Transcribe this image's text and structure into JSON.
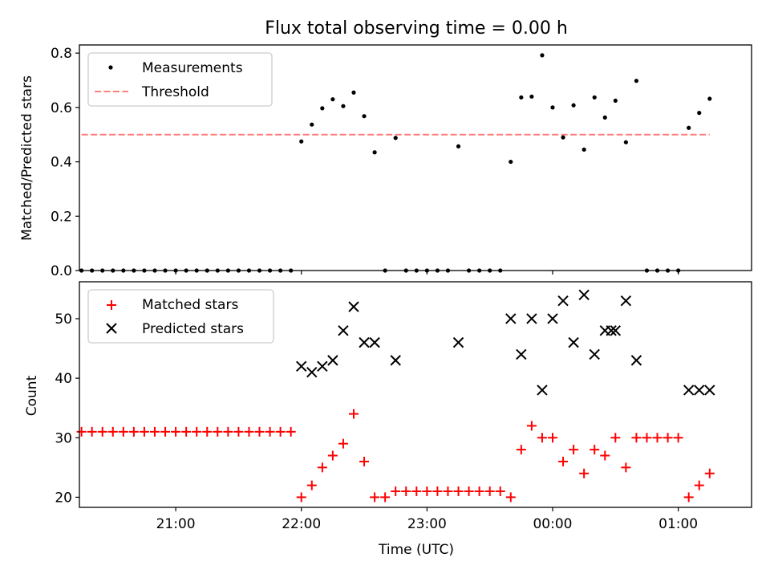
{
  "chart_data": [
    {
      "type": "scatter",
      "title": "Flux total observing time = 0.00 h",
      "ylabel": "Matched/Predicted stars",
      "xlabel": "",
      "xlim": [
        "20:14",
        "01:35"
      ],
      "ylim": [
        0,
        0.83
      ],
      "yticks": [
        "0.0",
        "0.2",
        "0.4",
        "0.6",
        "0.8"
      ],
      "legend": {
        "placement": "top-left",
        "entries": [
          "Measurements",
          "Threshold"
        ]
      },
      "threshold": {
        "name": "Threshold",
        "y": 0.5,
        "x": [
          "20:15",
          "01:15"
        ],
        "color": "#ff7f7f",
        "style": "dashed"
      },
      "series": [
        {
          "name": "Measurements",
          "color": "#000000",
          "points": [
            [
              "20:15",
              0
            ],
            [
              "20:20",
              0
            ],
            [
              "20:25",
              0
            ],
            [
              "20:30",
              0
            ],
            [
              "20:35",
              0
            ],
            [
              "20:40",
              0
            ],
            [
              "20:45",
              0
            ],
            [
              "20:50",
              0
            ],
            [
              "20:55",
              0
            ],
            [
              "21:00",
              0
            ],
            [
              "21:05",
              0
            ],
            [
              "21:10",
              0
            ],
            [
              "21:15",
              0
            ],
            [
              "21:20",
              0
            ],
            [
              "21:25",
              0
            ],
            [
              "21:30",
              0
            ],
            [
              "21:35",
              0
            ],
            [
              "21:40",
              0
            ],
            [
              "21:45",
              0
            ],
            [
              "21:50",
              0
            ],
            [
              "21:55",
              0
            ],
            [
              "22:00",
              0.475
            ],
            [
              "22:05",
              0.537
            ],
            [
              "22:10",
              0.597
            ],
            [
              "22:15",
              0.63
            ],
            [
              "22:20",
              0.605
            ],
            [
              "22:25",
              0.655
            ],
            [
              "22:30",
              0.568
            ],
            [
              "22:35",
              0.435
            ],
            [
              "22:40",
              0
            ],
            [
              "22:45",
              0.488
            ],
            [
              "22:50",
              0
            ],
            [
              "22:55",
              0
            ],
            [
              "23:00",
              0
            ],
            [
              "23:05",
              0
            ],
            [
              "23:10",
              0
            ],
            [
              "23:15",
              0.457
            ],
            [
              "23:20",
              0
            ],
            [
              "23:25",
              0
            ],
            [
              "23:30",
              0
            ],
            [
              "23:35",
              0
            ],
            [
              "23:40",
              0.4
            ],
            [
              "23:45",
              0.637
            ],
            [
              "23:50",
              0.64
            ],
            [
              "23:55",
              0.792
            ],
            [
              "00:00",
              0.6
            ],
            [
              "00:05",
              0.49
            ],
            [
              "00:10",
              0.608
            ],
            [
              "00:15",
              0.445
            ],
            [
              "00:20",
              0.637
            ],
            [
              "00:25",
              0.563
            ],
            [
              "00:30",
              0.625
            ],
            [
              "00:35",
              0.472
            ],
            [
              "00:40",
              0.698
            ],
            [
              "00:45",
              0
            ],
            [
              "00:50",
              0
            ],
            [
              "00:55",
              0
            ],
            [
              "01:00",
              0
            ],
            [
              "01:05",
              0.525
            ],
            [
              "01:10",
              0.58
            ],
            [
              "01:15",
              0.632
            ]
          ]
        }
      ]
    },
    {
      "type": "scatter",
      "title": "",
      "ylabel": "Count",
      "xlabel": "Time (UTC)",
      "xlim": [
        "20:14",
        "01:35"
      ],
      "ylim": [
        18.3,
        56.2
      ],
      "yticks": [
        "20",
        "30",
        "40",
        "50"
      ],
      "xticks": [
        "21:00",
        "22:00",
        "23:00",
        "00:00",
        "01:00"
      ],
      "legend": {
        "placement": "top-left",
        "entries": [
          "Matched stars",
          "Predicted stars"
        ]
      },
      "series": [
        {
          "name": "Matched stars",
          "marker": "plus",
          "color": "#ff0000",
          "points": [
            [
              "20:15",
              31
            ],
            [
              "20:20",
              31
            ],
            [
              "20:25",
              31
            ],
            [
              "20:30",
              31
            ],
            [
              "20:35",
              31
            ],
            [
              "20:40",
              31
            ],
            [
              "20:45",
              31
            ],
            [
              "20:50",
              31
            ],
            [
              "20:55",
              31
            ],
            [
              "21:00",
              31
            ],
            [
              "21:05",
              31
            ],
            [
              "21:10",
              31
            ],
            [
              "21:15",
              31
            ],
            [
              "21:20",
              31
            ],
            [
              "21:25",
              31
            ],
            [
              "21:30",
              31
            ],
            [
              "21:35",
              31
            ],
            [
              "21:40",
              31
            ],
            [
              "21:45",
              31
            ],
            [
              "21:50",
              31
            ],
            [
              "21:55",
              31
            ],
            [
              "22:00",
              20
            ],
            [
              "22:05",
              22
            ],
            [
              "22:10",
              25
            ],
            [
              "22:15",
              27
            ],
            [
              "22:20",
              29
            ],
            [
              "22:25",
              34
            ],
            [
              "22:30",
              26
            ],
            [
              "22:35",
              20
            ],
            [
              "22:40",
              20
            ],
            [
              "22:45",
              21
            ],
            [
              "22:50",
              21
            ],
            [
              "22:55",
              21
            ],
            [
              "23:00",
              21
            ],
            [
              "23:05",
              21
            ],
            [
              "23:10",
              21
            ],
            [
              "23:15",
              21
            ],
            [
              "23:20",
              21
            ],
            [
              "23:25",
              21
            ],
            [
              "23:30",
              21
            ],
            [
              "23:35",
              21
            ],
            [
              "23:40",
              20
            ],
            [
              "23:45",
              28
            ],
            [
              "23:50",
              32
            ],
            [
              "23:55",
              30
            ],
            [
              "00:00",
              30
            ],
            [
              "00:05",
              26
            ],
            [
              "00:10",
              28
            ],
            [
              "00:15",
              24
            ],
            [
              "00:20",
              28
            ],
            [
              "00:25",
              27
            ],
            [
              "00:30",
              30
            ],
            [
              "00:35",
              25
            ],
            [
              "00:40",
              30
            ],
            [
              "00:45",
              30
            ],
            [
              "00:50",
              30
            ],
            [
              "00:55",
              30
            ],
            [
              "01:00",
              30
            ],
            [
              "01:05",
              20
            ],
            [
              "01:10",
              22
            ],
            [
              "01:15",
              24
            ]
          ]
        },
        {
          "name": "Predicted stars",
          "marker": "x",
          "color": "#000000",
          "points": [
            [
              "22:00",
              42
            ],
            [
              "22:05",
              41
            ],
            [
              "22:10",
              42
            ],
            [
              "22:15",
              43
            ],
            [
              "22:20",
              48
            ],
            [
              "22:25",
              52
            ],
            [
              "22:30",
              46
            ],
            [
              "22:35",
              46
            ],
            [
              "22:45",
              43
            ],
            [
              "23:15",
              46
            ],
            [
              "23:40",
              50
            ],
            [
              "23:45",
              44
            ],
            [
              "23:50",
              50
            ],
            [
              "23:55",
              38
            ],
            [
              "00:00",
              50
            ],
            [
              "00:05",
              53
            ],
            [
              "00:10",
              46
            ],
            [
              "00:15",
              54
            ],
            [
              "00:20",
              44
            ],
            [
              "00:25",
              48
            ],
            [
              "00:28",
              48
            ],
            [
              "00:30",
              48
            ],
            [
              "00:35",
              53
            ],
            [
              "00:40",
              43
            ],
            [
              "01:05",
              38
            ],
            [
              "01:10",
              38
            ],
            [
              "01:15",
              38
            ]
          ]
        }
      ]
    }
  ]
}
